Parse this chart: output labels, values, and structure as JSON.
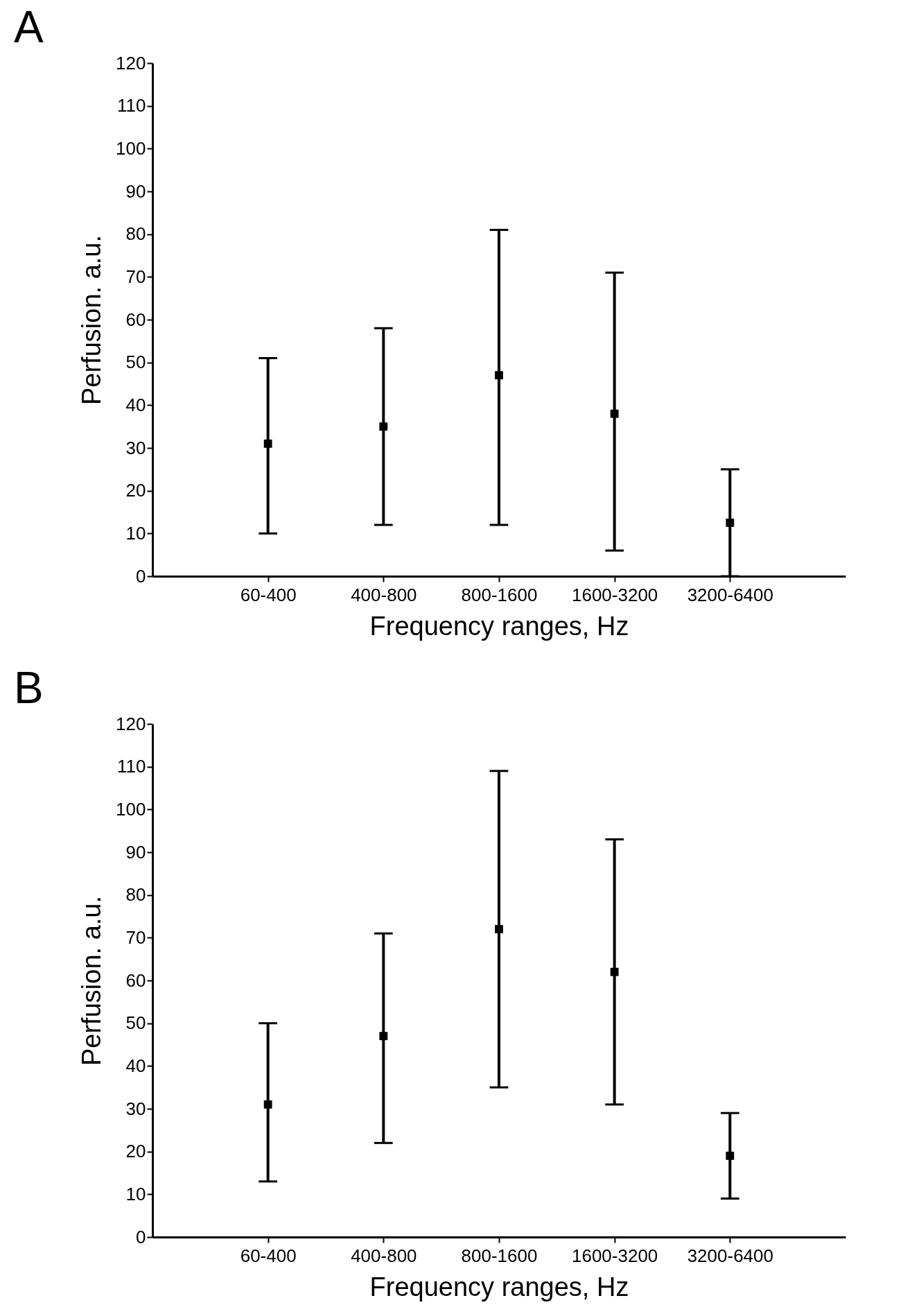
{
  "chart_data": [
    {
      "type": "scatter",
      "title": "A",
      "xlabel": "Frequency ranges, Hz",
      "ylabel": "Perfusion. a.u.",
      "categories": [
        "60-400",
        "400-800",
        "800-1600",
        "1600-3200",
        "3200-6400"
      ],
      "values": [
        31,
        35,
        47,
        38,
        12.5
      ],
      "errors": [
        [
          10,
          51
        ],
        [
          12,
          58
        ],
        [
          12,
          81
        ],
        [
          6,
          71
        ],
        [
          0,
          25
        ]
      ],
      "color": "#000000",
      "marker": "square",
      "ylim": [
        0,
        120
      ],
      "yticks": [
        0,
        10,
        20,
        30,
        40,
        50,
        60,
        70,
        80,
        90,
        100,
        110,
        120
      ]
    },
    {
      "type": "scatter",
      "title": "B",
      "xlabel": "Frequency ranges, Hz",
      "ylabel": "Perfusion. a.u.",
      "categories": [
        "60-400",
        "400-800",
        "800-1600",
        "1600-3200",
        "3200-6400"
      ],
      "values": [
        31,
        47,
        72,
        62,
        19
      ],
      "errors": [
        [
          13,
          50
        ],
        [
          22,
          71
        ],
        [
          35,
          109
        ],
        [
          31,
          93
        ],
        [
          9,
          29
        ]
      ],
      "color": "#000000",
      "marker": "square",
      "ylim": [
        0,
        120
      ],
      "yticks": [
        0,
        10,
        20,
        30,
        40,
        50,
        60,
        70,
        80,
        90,
        100,
        110,
        120
      ]
    }
  ]
}
